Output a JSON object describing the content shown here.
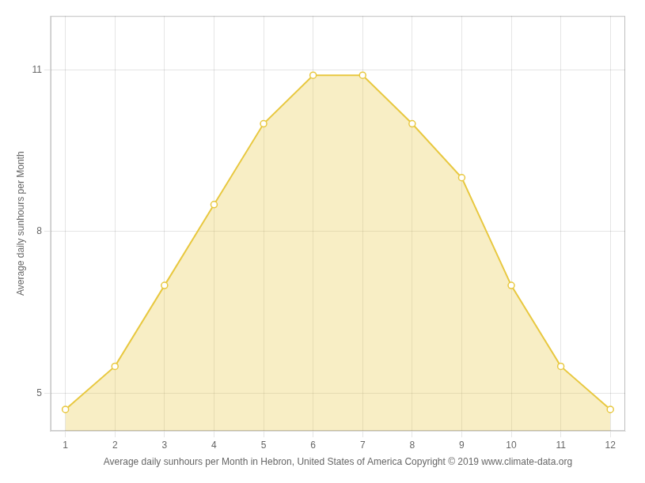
{
  "chart_data": {
    "type": "area",
    "xlabel": "Average daily sunhours per Month in Hebron, United States of America Copyright © 2019 www.climate-data.org",
    "ylabel": "Average daily sunhours per Month",
    "x": [
      1,
      2,
      3,
      4,
      5,
      6,
      7,
      8,
      9,
      10,
      11,
      12
    ],
    "values": [
      4.7,
      5.5,
      7.0,
      8.5,
      10.0,
      10.9,
      10.9,
      10.0,
      9.0,
      7.0,
      5.5,
      4.7
    ],
    "color": "#E8C840",
    "marker": "circle",
    "xlim": [
      0.7,
      12.3
    ],
    "ylim": [
      4.3,
      12.0
    ],
    "xticks": [
      1,
      2,
      3,
      4,
      5,
      6,
      7,
      8,
      9,
      10,
      11,
      12
    ],
    "yticks": [
      5,
      8,
      11
    ],
    "grid": true
  }
}
